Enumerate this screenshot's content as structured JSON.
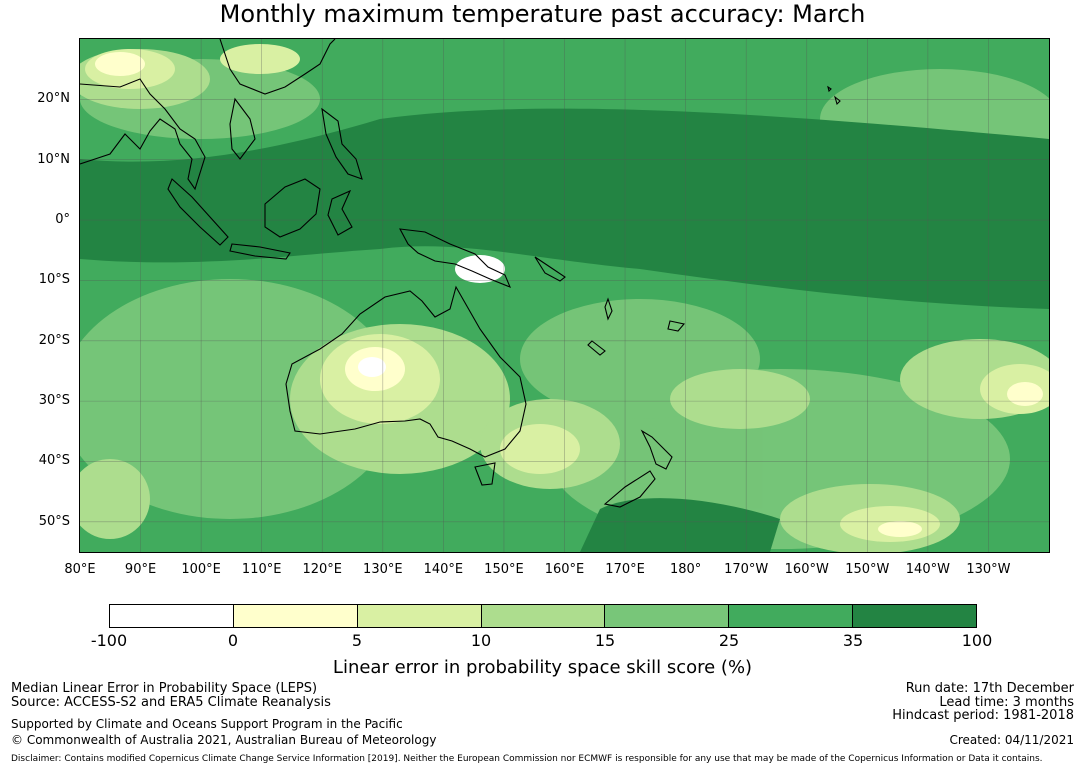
{
  "title": "Monthly maximum temperature past accuracy: March",
  "map": {
    "lon_range": [
      80,
      240
    ],
    "lat_range": [
      -55,
      30
    ],
    "lat_labels": [
      {
        "lat": 20,
        "label": "20°N"
      },
      {
        "lat": 10,
        "label": "10°N"
      },
      {
        "lat": 0,
        "label": "0°"
      },
      {
        "lat": -10,
        "label": "10°S"
      },
      {
        "lat": -20,
        "label": "20°S"
      },
      {
        "lat": -30,
        "label": "30°S"
      },
      {
        "lat": -40,
        "label": "40°S"
      },
      {
        "lat": -50,
        "label": "50°S"
      }
    ],
    "lon_labels": [
      {
        "lon": 80,
        "label": "80°E"
      },
      {
        "lon": 90,
        "label": "90°E"
      },
      {
        "lon": 100,
        "label": "100°E"
      },
      {
        "lon": 110,
        "label": "110°E"
      },
      {
        "lon": 120,
        "label": "120°E"
      },
      {
        "lon": 130,
        "label": "130°E"
      },
      {
        "lon": 140,
        "label": "140°E"
      },
      {
        "lon": 150,
        "label": "150°E"
      },
      {
        "lon": 160,
        "label": "160°E"
      },
      {
        "lon": 170,
        "label": "170°E"
      },
      {
        "lon": 180,
        "label": "180°"
      },
      {
        "lon": 190,
        "label": "170°W"
      },
      {
        "lon": 200,
        "label": "160°W"
      },
      {
        "lon": 210,
        "label": "150°W"
      },
      {
        "lon": 220,
        "label": "140°W"
      },
      {
        "lon": 230,
        "label": "130°W"
      }
    ]
  },
  "colorbar": {
    "label": "Linear error in probability space skill score (%)",
    "ticks": [
      "-100",
      "0",
      "5",
      "10",
      "15",
      "25",
      "35",
      "100"
    ],
    "colors": [
      "#ffffff",
      "#ffffcc",
      "#d9f0a3",
      "#addd8e",
      "#78c679",
      "#41ab5d",
      "#238443"
    ]
  },
  "info": {
    "method": "Median Linear Error in Probability Space (LEPS)",
    "source": "Source: ACCESS-S2 and ERA5 Climate Reanalysis",
    "support": "Supported by Climate and Oceans Support Program in the Pacific",
    "copyright": "© Commonwealth of Australia 2021, Australian Bureau of Meteorology",
    "run_date": "Run date: 17th December",
    "lead_time": "Lead time: 3 months",
    "hindcast": "Hindcast period: 1981-2018",
    "created": "Created: 04/11/2021",
    "disclaimer": "Disclaimer: Contains modified Copernicus Climate Change Service Information [2019]. Neither the European Commission nor ECMWF is responsible for any use that may be made of the Copernicus Information or Data it contains."
  }
}
